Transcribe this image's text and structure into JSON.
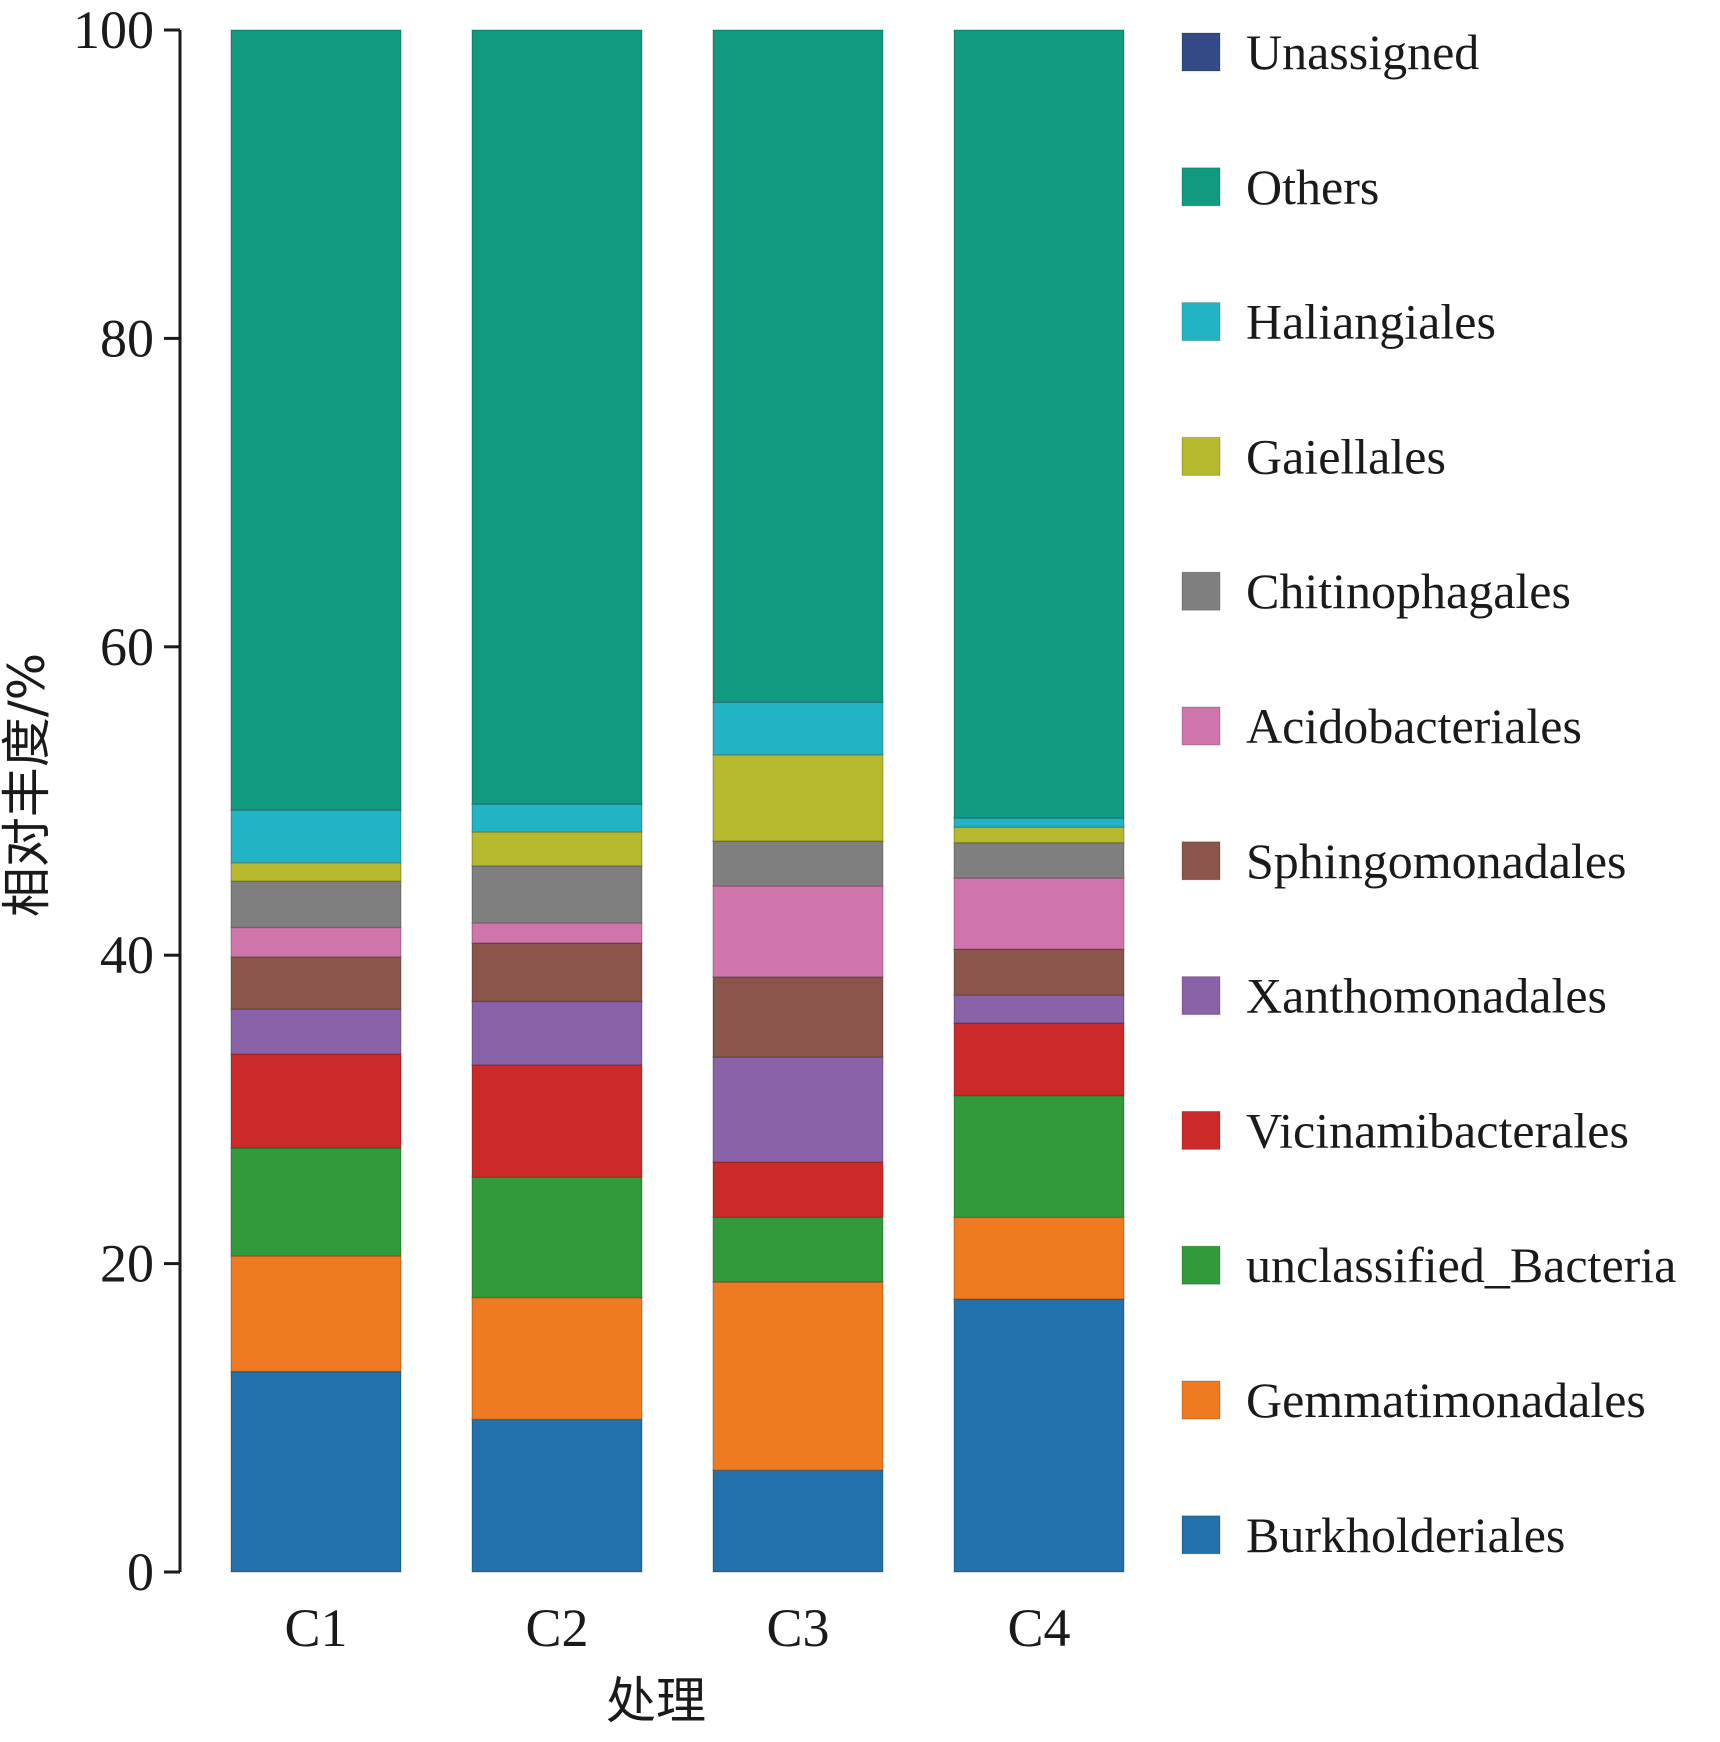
{
  "chart_data": {
    "type": "bar",
    "stacked": true,
    "title": "",
    "xlabel": "处理",
    "ylabel": "相对丰度/%",
    "ylim": [
      0,
      100
    ],
    "yticks": [
      0,
      20,
      40,
      60,
      80,
      100
    ],
    "grid": false,
    "legend_position": "right",
    "categories": [
      "C1",
      "C2",
      "C3",
      "C4"
    ],
    "series": [
      {
        "name": "Burkholderiales",
        "color": "#2271ab",
        "values": [
          13.0,
          9.9,
          6.6,
          17.7
        ]
      },
      {
        "name": "Gemmatimonadales",
        "color": "#ee7b22",
        "values": [
          7.5,
          7.9,
          12.2,
          5.3
        ]
      },
      {
        "name": "unclassified_Bacteria",
        "color": "#339a3b",
        "values": [
          7.0,
          7.8,
          4.2,
          7.9
        ]
      },
      {
        "name": "Vicinamibacterales",
        "color": "#cc2a28",
        "values": [
          6.1,
          7.3,
          3.6,
          4.7
        ]
      },
      {
        "name": "Xanthomonadales",
        "color": "#8a62a8",
        "values": [
          2.9,
          4.1,
          6.8,
          1.8
        ]
      },
      {
        "name": "Sphingomonadales",
        "color": "#8a554a",
        "values": [
          3.4,
          3.8,
          5.2,
          3.0
        ]
      },
      {
        "name": "Acidobacteriales",
        "color": "#d075ab",
        "values": [
          1.9,
          1.3,
          5.9,
          4.6
        ]
      },
      {
        "name": "Chitinophagales",
        "color": "#7f7f7f",
        "values": [
          3.0,
          3.7,
          2.9,
          2.3
        ]
      },
      {
        "name": "Gaiellales",
        "color": "#b6b82d",
        "values": [
          1.2,
          2.2,
          5.6,
          1.0
        ]
      },
      {
        "name": "Haliangiales",
        "color": "#22b3c5",
        "values": [
          3.4,
          1.8,
          3.4,
          0.6
        ]
      },
      {
        "name": "Others",
        "color": "#129a80",
        "values": [
          50.6,
          50.2,
          43.6,
          51.1
        ]
      },
      {
        "name": "Unassigned",
        "color": "#344a86",
        "values": [
          0.0,
          0.0,
          0.0,
          0.0
        ]
      }
    ]
  }
}
